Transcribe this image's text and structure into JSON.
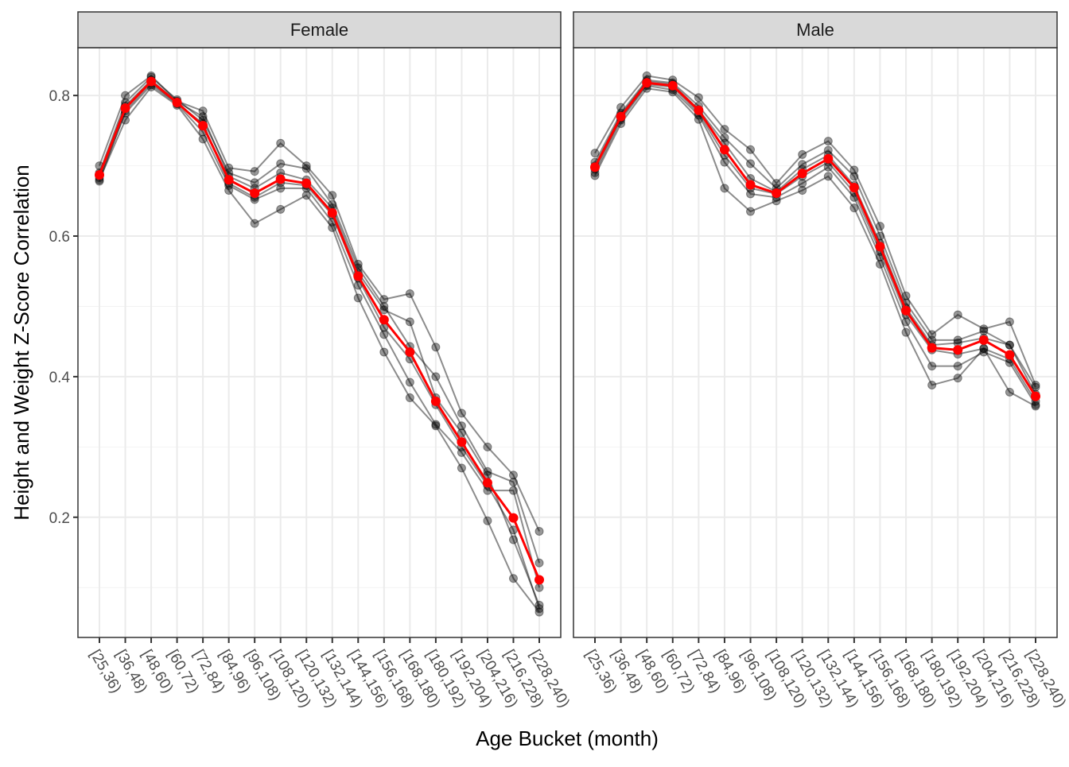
{
  "chart_data": [
    {
      "type": "line",
      "panel": "Female",
      "xlabel": "Age Bucket (month)",
      "ylabel": "Height and Weight Z-Score Correlation",
      "ylim": [
        0.029,
        0.868
      ],
      "yticks": [
        0.2,
        0.4,
        0.6,
        0.8
      ],
      "ytick_labels": [
        "0.2",
        "0.4",
        "0.6",
        "0.8"
      ],
      "grid": true,
      "categories": [
        "[25,36)",
        "[36,48)",
        "[48,60)",
        "[60,72)",
        "[72,84)",
        "[84,96)",
        "[96,108)",
        "[108,120)",
        "[120,132)",
        "[132,144)",
        "[144,156)",
        "[156,168)",
        "[168,180)",
        "[180,192)",
        "[192,204)",
        "[204,216)",
        "[216,228)",
        "[228,240)"
      ],
      "mean": {
        "color": "#ff0000",
        "values": [
          0.687,
          0.782,
          0.82,
          0.79,
          0.757,
          0.68,
          0.661,
          0.681,
          0.675,
          0.633,
          0.543,
          0.481,
          0.435,
          0.365,
          0.307,
          0.249,
          0.199,
          0.111
        ]
      },
      "replicates": {
        "color": "#000000",
        "values": [
          [
            0.7,
            0.8,
            0.828,
            0.792,
            0.778,
            0.697,
            0.692,
            0.732,
            0.7,
            0.658,
            0.56,
            0.51,
            0.518,
            0.442,
            0.348,
            0.3,
            0.26,
            0.18
          ],
          [
            0.68,
            0.765,
            0.812,
            0.786,
            0.738,
            0.665,
            0.618,
            0.638,
            0.658,
            0.612,
            0.512,
            0.435,
            0.37,
            0.33,
            0.27,
            0.195,
            0.113,
            0.065
          ],
          [
            0.69,
            0.79,
            0.826,
            0.794,
            0.765,
            0.69,
            0.676,
            0.703,
            0.696,
            0.645,
            0.555,
            0.5,
            0.443,
            0.4,
            0.33,
            0.265,
            0.25,
            0.135
          ],
          [
            0.683,
            0.775,
            0.815,
            0.788,
            0.748,
            0.672,
            0.652,
            0.668,
            0.668,
            0.62,
            0.53,
            0.46,
            0.392,
            0.332,
            0.292,
            0.238,
            0.238,
            0.1
          ],
          [
            0.688,
            0.785,
            0.822,
            0.791,
            0.77,
            0.685,
            0.668,
            0.69,
            0.68,
            0.64,
            0.548,
            0.495,
            0.478,
            0.37,
            0.32,
            0.26,
            0.168,
            0.075
          ],
          [
            0.678,
            0.778,
            0.818,
            0.789,
            0.76,
            0.675,
            0.655,
            0.676,
            0.672,
            0.63,
            0.54,
            0.47,
            0.425,
            0.36,
            0.3,
            0.245,
            0.182,
            0.07
          ]
        ]
      }
    },
    {
      "type": "line",
      "panel": "Male",
      "xlabel": "Age Bucket (month)",
      "ylabel": "Height and Weight Z-Score Correlation",
      "ylim": [
        0.029,
        0.868
      ],
      "yticks": [
        0.2,
        0.4,
        0.6,
        0.8
      ],
      "grid": true,
      "categories": [
        "[25,36)",
        "[36,48)",
        "[48,60)",
        "[60,72)",
        "[72,84)",
        "[84,96)",
        "[96,108)",
        "[108,120)",
        "[120,132)",
        "[132,144)",
        "[144,156)",
        "[156,168)",
        "[168,180)",
        "[180,192)",
        "[192,204)",
        "[204,216)",
        "[216,228)",
        "[228,240)"
      ],
      "mean": {
        "color": "#ff0000",
        "values": [
          0.698,
          0.77,
          0.818,
          0.814,
          0.779,
          0.723,
          0.673,
          0.661,
          0.689,
          0.71,
          0.669,
          0.585,
          0.494,
          0.441,
          0.438,
          0.452,
          0.431,
          0.372
        ]
      },
      "replicates": {
        "color": "#000000",
        "values": [
          [
            0.718,
            0.783,
            0.828,
            0.822,
            0.797,
            0.752,
            0.723,
            0.675,
            0.716,
            0.735,
            0.694,
            0.614,
            0.515,
            0.46,
            0.488,
            0.468,
            0.478,
            0.388
          ],
          [
            0.686,
            0.76,
            0.81,
            0.805,
            0.766,
            0.668,
            0.635,
            0.65,
            0.665,
            0.685,
            0.64,
            0.56,
            0.463,
            0.388,
            0.398,
            0.44,
            0.378,
            0.358
          ],
          [
            0.705,
            0.775,
            0.822,
            0.818,
            0.785,
            0.74,
            0.703,
            0.668,
            0.702,
            0.722,
            0.685,
            0.6,
            0.505,
            0.452,
            0.452,
            0.465,
            0.445,
            0.385
          ],
          [
            0.69,
            0.765,
            0.814,
            0.808,
            0.772,
            0.705,
            0.66,
            0.655,
            0.675,
            0.698,
            0.655,
            0.57,
            0.478,
            0.415,
            0.415,
            0.435,
            0.42,
            0.36
          ],
          [
            0.7,
            0.772,
            0.82,
            0.816,
            0.78,
            0.732,
            0.682,
            0.663,
            0.695,
            0.715,
            0.672,
            0.59,
            0.498,
            0.445,
            0.448,
            0.455,
            0.445,
            0.375
          ],
          [
            0.695,
            0.768,
            0.816,
            0.812,
            0.775,
            0.715,
            0.668,
            0.66,
            0.685,
            0.705,
            0.662,
            0.578,
            0.488,
            0.438,
            0.432,
            0.44,
            0.425,
            0.365
          ]
        ]
      }
    }
  ],
  "labels": {
    "xlabel": "Age Bucket (month)",
    "ylabel": "Height and Weight Z-Score Correlation",
    "panel_female": "Female",
    "panel_male": "Male"
  }
}
